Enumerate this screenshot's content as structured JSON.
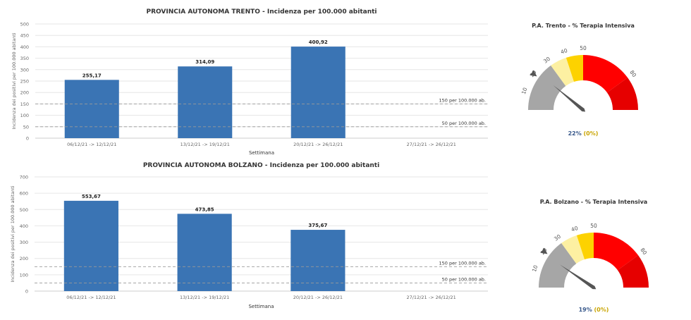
{
  "chart_data": [
    {
      "id": "trento-bar",
      "type": "bar",
      "title": "PROVINCIA AUTONOMA TRENTO - Incidenza per 100.000 abitanti",
      "xlabel": "Settimana",
      "ylabel": "Incidenza dei positivi per 100.000 abitanti",
      "ylim": [
        0,
        500
      ],
      "yticks": [
        0,
        50,
        100,
        150,
        200,
        250,
        300,
        350,
        400,
        450,
        500
      ],
      "categories": [
        "06/12/21 -> 12/12/21",
        "13/12/21 -> 19/12/21",
        "20/12/21 -> 26/12/21",
        "27/12/21 -> 26/12/21"
      ],
      "values": [
        255.17,
        314.09,
        400.92,
        null
      ],
      "value_labels": [
        "255,17",
        "314,09",
        "400,92",
        ""
      ],
      "bar_color": "#3a74b4",
      "grid": true,
      "reference_lines": [
        {
          "value": 150,
          "label": "150 per 100.000 ab."
        },
        {
          "value": 50,
          "label": "50 per 100.000 ab."
        }
      ]
    },
    {
      "id": "bolzano-bar",
      "type": "bar",
      "title": "PROVINCIA AUTONOMA BOLZANO - Incidenza per 100.000 abitanti",
      "xlabel": "Settimana",
      "ylabel": "Incidenza dei positivi per 100.000 abitanti",
      "ylim": [
        0,
        700
      ],
      "yticks": [
        0,
        100,
        200,
        300,
        400,
        500,
        600,
        700
      ],
      "categories": [
        "06/12/21 -> 12/12/21",
        "13/12/21 -> 19/12/21",
        "20/12/21 -> 26/12/21",
        "27/12/21 -> 26/12/21"
      ],
      "values": [
        553.67,
        473.85,
        375.67,
        null
      ],
      "value_labels": [
        "553,67",
        "473,85",
        "375,67",
        ""
      ],
      "bar_color": "#3a74b4",
      "grid": true,
      "reference_lines": [
        {
          "value": 150,
          "label": "150 per 100.000 ab."
        },
        {
          "value": 50,
          "label": "50 per 100.000 ab."
        }
      ]
    },
    {
      "id": "trento-gauge",
      "type": "gauge",
      "title": "P.A. Trento - % Terapia Intensiva",
      "range": [
        0,
        100
      ],
      "value": 22,
      "value_label": "22%",
      "delta_label": "(0%)",
      "ticks": [
        10,
        20,
        30,
        40,
        50,
        80
      ],
      "bands": [
        {
          "from": 0,
          "to": 30,
          "color": "#a6a6a6"
        },
        {
          "from": 30,
          "to": 40,
          "color": "#fdf0a2"
        },
        {
          "from": 40,
          "to": 50,
          "color": "#fdd200"
        },
        {
          "from": 50,
          "to": 80,
          "color": "#ff0000"
        },
        {
          "from": 80,
          "to": 100,
          "color": "#e60000"
        }
      ],
      "marker_value": 20,
      "colors": {
        "value": "#3a5a8c",
        "delta": "#c9a400",
        "needle": "#555555"
      }
    },
    {
      "id": "bolzano-gauge",
      "type": "gauge",
      "title": "P.A. Bolzano - % Terapia Intensiva",
      "range": [
        0,
        100
      ],
      "value": 19,
      "value_label": "19%",
      "delta_label": "(0%)",
      "ticks": [
        10,
        20,
        30,
        40,
        50,
        80
      ],
      "bands": [
        {
          "from": 0,
          "to": 30,
          "color": "#a6a6a6"
        },
        {
          "from": 30,
          "to": 40,
          "color": "#fdf0a2"
        },
        {
          "from": 40,
          "to": 50,
          "color": "#fdd200"
        },
        {
          "from": 50,
          "to": 80,
          "color": "#ff0000"
        },
        {
          "from": 80,
          "to": 100,
          "color": "#e60000"
        }
      ],
      "marker_value": 20,
      "colors": {
        "value": "#3a5a8c",
        "delta": "#c9a400",
        "needle": "#555555"
      }
    }
  ]
}
